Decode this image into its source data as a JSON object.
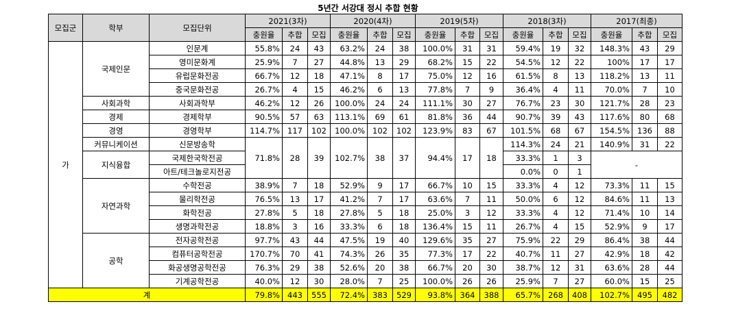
{
  "title": "5년간 서강대 정시 추합 현황",
  "headers": {
    "group": "모집군",
    "faculty": "학부",
    "unit": "모집단위",
    "years": [
      "2021(3차)",
      "2020(4차)",
      "2019(5차)",
      "2018(3차)",
      "2017(최종)"
    ],
    "sub": [
      "충원율",
      "추합",
      "모집"
    ]
  },
  "group_label": "가",
  "faculties": {
    "intl": "국제인문",
    "social": "사회과학",
    "econ": "경제",
    "mgmt": "경영",
    "comm": "커뮤니케이션",
    "conv": "지식융합",
    "natural": "자연과학",
    "eng": "공학"
  },
  "units": {
    "u1": "인문계",
    "u2": "영미문화계",
    "u3": "유럽문화전공",
    "u4": "중국문화전공",
    "u5": "사회과학부",
    "u6": "경제학부",
    "u7": "경영학부",
    "u8": "신문방송학",
    "u9": "국제한국학전공",
    "u10": "아트/테크놀로지전공",
    "u11": "수학전공",
    "u12": "물리학전공",
    "u13": "화학전공",
    "u14": "생명과학전공",
    "u15": "전자공학전공",
    "u16": "컴퓨터공학전공",
    "u17": "화공생명공학전공",
    "u18": "기계공학전공"
  },
  "rows": {
    "u1": [
      "55.8%",
      "24",
      "43",
      "63.2%",
      "24",
      "38",
      "100.0%",
      "31",
      "31",
      "59.4%",
      "19",
      "32",
      "148.3%",
      "43",
      "29"
    ],
    "u2": [
      "25.9%",
      "7",
      "27",
      "44.8%",
      "13",
      "29",
      "68.2%",
      "15",
      "22",
      "54.5%",
      "12",
      "22",
      "100%",
      "17",
      "17"
    ],
    "u3": [
      "66.7%",
      "12",
      "18",
      "47.1%",
      "8",
      "17",
      "75.0%",
      "12",
      "16",
      "61.5%",
      "8",
      "13",
      "118.2%",
      "13",
      "11"
    ],
    "u4": [
      "26.7%",
      "4",
      "15",
      "46.2%",
      "6",
      "13",
      "77.8%",
      "7",
      "9",
      "36.4%",
      "4",
      "11",
      "70.0%",
      "7",
      "10"
    ],
    "u5": [
      "46.2%",
      "12",
      "26",
      "100.0%",
      "24",
      "24",
      "111.1%",
      "30",
      "27",
      "76.7%",
      "23",
      "30",
      "121.7%",
      "28",
      "23"
    ],
    "u6": [
      "90.5%",
      "57",
      "63",
      "113.1%",
      "69",
      "61",
      "81.8%",
      "36",
      "44",
      "90.7%",
      "39",
      "43",
      "117.6%",
      "80",
      "68"
    ],
    "u7": [
      "114.7%",
      "117",
      "102",
      "100.0%",
      "102",
      "102",
      "123.9%",
      "83",
      "67",
      "101.5%",
      "68",
      "67",
      "154.5%",
      "136",
      "88"
    ],
    "merged": [
      "71.8%",
      "28",
      "39",
      "102.7%",
      "38",
      "37",
      "94.4%",
      "17",
      "18"
    ],
    "u8": [
      "114.3%",
      "24",
      "21",
      "140.9%",
      "31",
      "22"
    ],
    "u9": [
      "33.3%",
      "1",
      "3"
    ],
    "u10": [
      "0.0%",
      "0",
      "1"
    ],
    "dash": "-",
    "u11": [
      "38.9%",
      "7",
      "18",
      "52.9%",
      "9",
      "17",
      "66.7%",
      "10",
      "15",
      "33.3%",
      "4",
      "12",
      "73.3%",
      "11",
      "15"
    ],
    "u12": [
      "76.5%",
      "13",
      "17",
      "41.2%",
      "7",
      "17",
      "63.6%",
      "7",
      "11",
      "50.0%",
      "6",
      "12",
      "84.6%",
      "11",
      "13"
    ],
    "u13": [
      "27.8%",
      "5",
      "18",
      "27.8%",
      "5",
      "18",
      "25.0%",
      "3",
      "12",
      "33.3%",
      "4",
      "12",
      "71.4%",
      "10",
      "14"
    ],
    "u14": [
      "18.8%",
      "3",
      "16",
      "33.3%",
      "6",
      "18",
      "136.4%",
      "15",
      "11",
      "26.7%",
      "4",
      "15",
      "52.9%",
      "9",
      "17"
    ],
    "u15": [
      "97.7%",
      "43",
      "44",
      "47.5%",
      "19",
      "40",
      "129.6%",
      "35",
      "27",
      "75.9%",
      "22",
      "29",
      "86.4%",
      "38",
      "44"
    ],
    "u16": [
      "170.7%",
      "70",
      "41",
      "74.3%",
      "26",
      "35",
      "77.3%",
      "17",
      "22",
      "40.7%",
      "11",
      "27",
      "42.9%",
      "18",
      "42"
    ],
    "u17": [
      "76.3%",
      "29",
      "38",
      "52.6%",
      "20",
      "38",
      "66.7%",
      "20",
      "30",
      "38.7%",
      "12",
      "31",
      "63.6%",
      "28",
      "44"
    ],
    "u18": [
      "40.0%",
      "12",
      "30",
      "28.0%",
      "7",
      "25",
      "100.0%",
      "26",
      "26",
      "25.9%",
      "7",
      "27",
      "60.0%",
      "15",
      "25"
    ]
  },
  "total_label": "계",
  "total": [
    "79.8%",
    "443",
    "555",
    "72.4%",
    "383",
    "529",
    "93.8%",
    "364",
    "388",
    "65.7%",
    "268",
    "408",
    "102.7%",
    "495",
    "482"
  ]
}
